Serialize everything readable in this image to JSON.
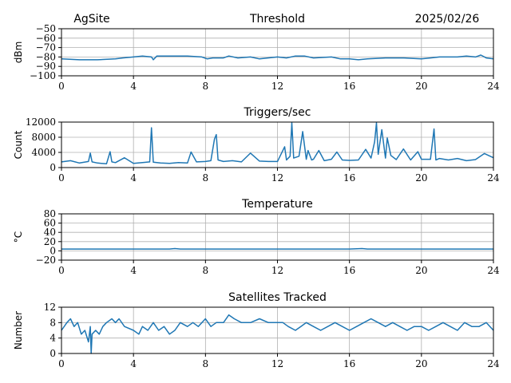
{
  "header": {
    "site": "AgSite",
    "date": "2025/02/26"
  },
  "colors": {
    "series": "#1f77b4",
    "grid": "#b0b0b0"
  },
  "chart_data": [
    {
      "type": "line",
      "title": "Threshold",
      "ylabel": "dBm",
      "xlim": [
        0,
        24
      ],
      "ylim": [
        -100,
        -50
      ],
      "yticks": [
        -50,
        -60,
        -70,
        -80,
        -90,
        -100
      ],
      "ytick_labels": [
        "−50",
        "−60",
        "−70",
        "−80",
        "−90",
        "−100"
      ],
      "xticks": [
        0,
        4,
        8,
        12,
        16,
        20,
        24
      ],
      "grid": true,
      "series": [
        {
          "x": [
            0,
            1,
            2,
            3,
            3.4,
            4,
            4.5,
            5,
            5.1,
            5.3,
            6,
            7,
            7.8,
            8.1,
            8.4,
            9,
            9.3,
            9.8,
            10.5,
            11,
            12,
            12.5,
            13,
            13.5,
            14,
            15,
            15.5,
            16,
            16.5,
            17,
            18,
            19,
            20,
            20.5,
            21,
            22,
            22.5,
            23,
            23.3,
            23.6,
            24
          ],
          "y": [
            -82,
            -83,
            -83,
            -82,
            -81,
            -80,
            -79,
            -80,
            -83,
            -79,
            -79,
            -79,
            -80,
            -82,
            -81,
            -81,
            -79,
            -81,
            -80,
            -82,
            -80,
            -81,
            -79,
            -79,
            -81,
            -80,
            -82,
            -82,
            -83,
            -82,
            -81,
            -81,
            -82,
            -81,
            -80,
            -80,
            -79,
            -80,
            -78,
            -81,
            -82
          ]
        }
      ]
    },
    {
      "type": "line",
      "title": "Triggers/sec",
      "ylabel": "Count",
      "xlim": [
        0,
        24
      ],
      "ylim": [
        0,
        12000
      ],
      "yticks": [
        0,
        4000,
        8000,
        12000
      ],
      "ytick_labels": [
        "0",
        "4000",
        "8000",
        "12000"
      ],
      "xticks": [
        0,
        4,
        8,
        12,
        16,
        20,
        24
      ],
      "grid": true,
      "series": [
        {
          "x": [
            0,
            0.5,
            1,
            1.5,
            1.6,
            1.7,
            2,
            2.5,
            2.7,
            2.8,
            3,
            3.5,
            4,
            4.5,
            4.9,
            5.0,
            5.1,
            5.5,
            6,
            6.5,
            7,
            7.2,
            7.5,
            8,
            8.3,
            8.5,
            8.6,
            8.7,
            9,
            9.5,
            10,
            10.5,
            11,
            11.5,
            12,
            12.4,
            12.5,
            12.7,
            12.8,
            12.9,
            13.2,
            13.3,
            13.4,
            13.6,
            13.7,
            13.9,
            14,
            14.3,
            14.6,
            15,
            15.3,
            15.6,
            16,
            16.5,
            16.9,
            17.2,
            17.4,
            17.5,
            17.6,
            17.8,
            18.0,
            18.1,
            18.3,
            18.6,
            19,
            19.4,
            19.8,
            20,
            20.5,
            20.7,
            20.8,
            21,
            21.5,
            22,
            22.5,
            23,
            23.5,
            24
          ],
          "y": [
            1500,
            1800,
            1200,
            1600,
            3800,
            1500,
            1200,
            1000,
            4200,
            1500,
            1300,
            2600,
            1100,
            1300,
            1500,
            10500,
            1400,
            1200,
            1100,
            1300,
            1200,
            4100,
            1500,
            1600,
            1800,
            7500,
            8700,
            2000,
            1600,
            1800,
            1500,
            3800,
            1700,
            1600,
            1600,
            5500,
            2000,
            3000,
            11800,
            2500,
            3000,
            6200,
            9500,
            2200,
            4500,
            2000,
            2200,
            4500,
            1800,
            2200,
            4100,
            2000,
            1900,
            2000,
            4800,
            2500,
            6800,
            11800,
            3500,
            10000,
            2500,
            7800,
            3200,
            2100,
            4900,
            2000,
            4200,
            2200,
            2200,
            10200,
            2000,
            2400,
            2000,
            2400,
            1800,
            2100,
            3700,
            2600
          ]
        }
      ]
    },
    {
      "type": "line",
      "title": "Temperature",
      "ylabel": "°C",
      "xlim": [
        0,
        24
      ],
      "ylim": [
        -20,
        80
      ],
      "yticks": [
        80,
        60,
        40,
        20,
        0,
        -20
      ],
      "ytick_labels": [
        "80",
        "60",
        "40",
        "20",
        "0",
        "−20"
      ],
      "xticks": [
        0,
        4,
        8,
        12,
        16,
        20,
        24
      ],
      "grid": true,
      "series": [
        {
          "x": [
            0,
            4,
            6,
            6.3,
            6.6,
            7,
            10,
            13,
            16,
            16.7,
            17,
            20,
            24
          ],
          "y": [
            4,
            4,
            4,
            5,
            4,
            4,
            4,
            4,
            4,
            5,
            4,
            4,
            4
          ]
        }
      ]
    },
    {
      "type": "line",
      "title": "Satellites Tracked",
      "ylabel": "Number",
      "xlim": [
        0,
        24
      ],
      "ylim": [
        0,
        12
      ],
      "yticks": [
        0,
        4,
        8,
        12
      ],
      "ytick_labels": [
        "0",
        "4",
        "8",
        "12"
      ],
      "xticks": [
        0,
        4,
        8,
        12,
        16,
        20,
        24
      ],
      "grid": true,
      "series": [
        {
          "x": [
            0,
            0.3,
            0.5,
            0.7,
            0.9,
            1.1,
            1.3,
            1.5,
            1.6,
            1.65,
            1.7,
            1.9,
            2.1,
            2.3,
            2.5,
            2.8,
            3.0,
            3.2,
            3.5,
            4.0,
            4.3,
            4.5,
            4.8,
            5.1,
            5.4,
            5.7,
            6.0,
            6.3,
            6.6,
            7.0,
            7.3,
            7.6,
            8.0,
            8.3,
            8.6,
            9.0,
            9.3,
            9.6,
            10,
            10.5,
            11,
            11.5,
            12,
            12.3,
            12.6,
            13,
            13.3,
            13.6,
            14,
            14.4,
            14.8,
            15.2,
            15.6,
            16,
            16.4,
            16.8,
            17.2,
            17.6,
            18,
            18.4,
            18.8,
            19.2,
            19.6,
            20,
            20.4,
            20.8,
            21.2,
            21.6,
            22,
            22.4,
            22.8,
            23.2,
            23.6,
            24
          ],
          "y": [
            6,
            8,
            9,
            7,
            8,
            5,
            6,
            3,
            7,
            0,
            5,
            6,
            5,
            7,
            8,
            9,
            8,
            9,
            7,
            6,
            5,
            7,
            6,
            8,
            6,
            7,
            5,
            6,
            8,
            7,
            8,
            7,
            9,
            7,
            8,
            8,
            10,
            9,
            8,
            8,
            9,
            8,
            8,
            8,
            7,
            6,
            7,
            8,
            7,
            6,
            7,
            8,
            7,
            6,
            7,
            8,
            9,
            8,
            7,
            8,
            7,
            6,
            7,
            7,
            6,
            7,
            8,
            7,
            6,
            8,
            7,
            7,
            8,
            6
          ]
        }
      ]
    }
  ]
}
